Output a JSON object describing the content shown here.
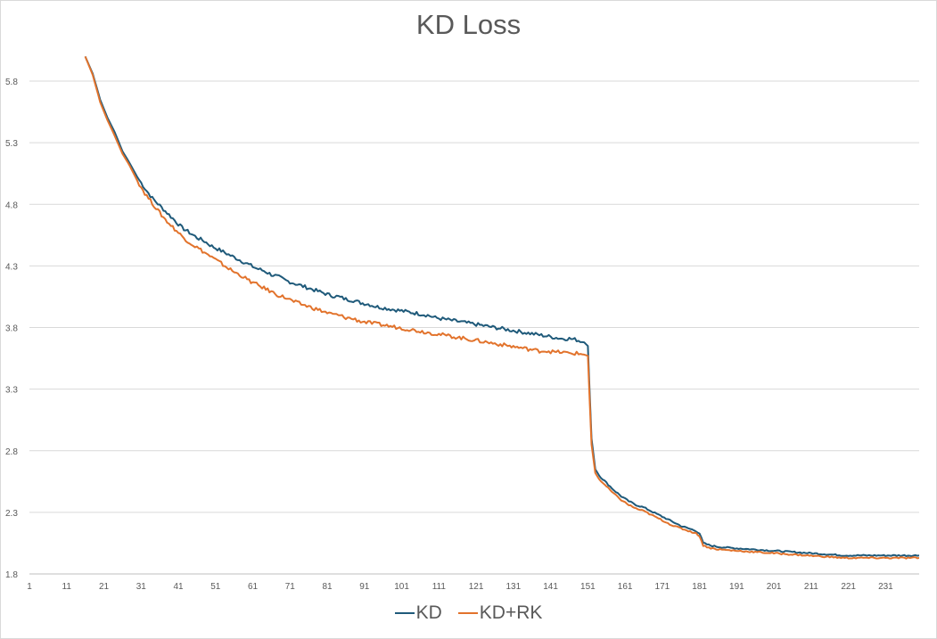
{
  "chart_data": {
    "type": "line",
    "title": "KD Loss",
    "xlabel": "",
    "ylabel": "",
    "x_range": [
      1,
      240
    ],
    "x_ticks": [
      1,
      11,
      21,
      31,
      41,
      51,
      61,
      71,
      81,
      91,
      101,
      111,
      121,
      131,
      141,
      151,
      161,
      171,
      181,
      191,
      201,
      211,
      221,
      231
    ],
    "ylim": [
      1.8,
      6.0
    ],
    "y_ticks": [
      "1.8",
      "2.3",
      "2.8",
      "3.3",
      "3.8",
      "4.3",
      "4.8",
      "5.3",
      "5.8"
    ],
    "grid": "horizontal",
    "legend_position": "bottom",
    "series": [
      {
        "name": "KD",
        "color": "#1f5a7a",
        "points": [
          [
            16,
            6.0
          ],
          [
            18,
            5.86
          ],
          [
            20,
            5.65
          ],
          [
            22,
            5.5
          ],
          [
            24,
            5.38
          ],
          [
            26,
            5.23
          ],
          [
            28,
            5.13
          ],
          [
            30,
            5.02
          ],
          [
            32,
            4.93
          ],
          [
            34,
            4.85
          ],
          [
            36,
            4.79
          ],
          [
            38,
            4.73
          ],
          [
            40,
            4.67
          ],
          [
            42,
            4.61
          ],
          [
            44,
            4.57
          ],
          [
            46,
            4.53
          ],
          [
            48,
            4.5
          ],
          [
            50,
            4.46
          ],
          [
            52,
            4.43
          ],
          [
            54,
            4.4
          ],
          [
            56,
            4.37
          ],
          [
            58,
            4.34
          ],
          [
            60,
            4.31
          ],
          [
            62,
            4.28
          ],
          [
            64,
            4.26
          ],
          [
            66,
            4.23
          ],
          [
            68,
            4.21
          ],
          [
            70,
            4.18
          ],
          [
            72,
            4.16
          ],
          [
            74,
            4.14
          ],
          [
            76,
            4.12
          ],
          [
            78,
            4.1
          ],
          [
            80,
            4.08
          ],
          [
            82,
            4.06
          ],
          [
            84,
            4.05
          ],
          [
            86,
            4.03
          ],
          [
            88,
            4.02
          ],
          [
            90,
            4.0
          ],
          [
            92,
            3.99
          ],
          [
            94,
            3.97
          ],
          [
            96,
            3.96
          ],
          [
            98,
            3.95
          ],
          [
            100,
            3.94
          ],
          [
            102,
            3.93
          ],
          [
            104,
            3.92
          ],
          [
            106,
            3.91
          ],
          [
            108,
            3.9
          ],
          [
            110,
            3.88
          ],
          [
            112,
            3.87
          ],
          [
            114,
            3.86
          ],
          [
            116,
            3.85
          ],
          [
            118,
            3.84
          ],
          [
            120,
            3.83
          ],
          [
            122,
            3.82
          ],
          [
            124,
            3.81
          ],
          [
            126,
            3.8
          ],
          [
            128,
            3.79
          ],
          [
            130,
            3.78
          ],
          [
            132,
            3.77
          ],
          [
            134,
            3.76
          ],
          [
            136,
            3.75
          ],
          [
            138,
            3.74
          ],
          [
            140,
            3.73
          ],
          [
            142,
            3.72
          ],
          [
            144,
            3.71
          ],
          [
            146,
            3.71
          ],
          [
            148,
            3.7
          ],
          [
            150,
            3.68
          ],
          [
            151,
            3.65
          ],
          [
            152,
            2.9
          ],
          [
            153,
            2.65
          ],
          [
            154,
            2.6
          ],
          [
            156,
            2.54
          ],
          [
            158,
            2.48
          ],
          [
            160,
            2.43
          ],
          [
            162,
            2.39
          ],
          [
            164,
            2.36
          ],
          [
            166,
            2.34
          ],
          [
            168,
            2.31
          ],
          [
            170,
            2.28
          ],
          [
            172,
            2.25
          ],
          [
            174,
            2.22
          ],
          [
            176,
            2.19
          ],
          [
            178,
            2.17
          ],
          [
            180,
            2.15
          ],
          [
            181,
            2.13
          ],
          [
            182,
            2.05
          ],
          [
            184,
            2.03
          ],
          [
            186,
            2.02
          ],
          [
            190,
            2.01
          ],
          [
            195,
            2.0
          ],
          [
            200,
            1.99
          ],
          [
            205,
            1.98
          ],
          [
            210,
            1.97
          ],
          [
            215,
            1.96
          ],
          [
            220,
            1.95
          ],
          [
            225,
            1.95
          ],
          [
            230,
            1.95
          ],
          [
            235,
            1.95
          ],
          [
            240,
            1.95
          ]
        ]
      },
      {
        "name": "KD+RK",
        "color": "#e2732c",
        "points": [
          [
            16,
            6.0
          ],
          [
            18,
            5.85
          ],
          [
            20,
            5.63
          ],
          [
            22,
            5.48
          ],
          [
            24,
            5.35
          ],
          [
            26,
            5.21
          ],
          [
            28,
            5.11
          ],
          [
            30,
            4.99
          ],
          [
            32,
            4.89
          ],
          [
            34,
            4.81
          ],
          [
            36,
            4.73
          ],
          [
            38,
            4.66
          ],
          [
            40,
            4.6
          ],
          [
            42,
            4.54
          ],
          [
            44,
            4.49
          ],
          [
            46,
            4.45
          ],
          [
            48,
            4.41
          ],
          [
            50,
            4.37
          ],
          [
            52,
            4.33
          ],
          [
            54,
            4.29
          ],
          [
            56,
            4.25
          ],
          [
            58,
            4.22
          ],
          [
            60,
            4.18
          ],
          [
            62,
            4.15
          ],
          [
            64,
            4.12
          ],
          [
            66,
            4.09
          ],
          [
            68,
            4.06
          ],
          [
            70,
            4.04
          ],
          [
            72,
            4.01
          ],
          [
            74,
            3.99
          ],
          [
            76,
            3.97
          ],
          [
            78,
            3.95
          ],
          [
            80,
            3.93
          ],
          [
            82,
            3.91
          ],
          [
            84,
            3.9
          ],
          [
            86,
            3.88
          ],
          [
            88,
            3.87
          ],
          [
            90,
            3.85
          ],
          [
            92,
            3.84
          ],
          [
            94,
            3.83
          ],
          [
            96,
            3.82
          ],
          [
            98,
            3.81
          ],
          [
            100,
            3.8
          ],
          [
            102,
            3.79
          ],
          [
            104,
            3.78
          ],
          [
            106,
            3.77
          ],
          [
            108,
            3.76
          ],
          [
            110,
            3.75
          ],
          [
            112,
            3.74
          ],
          [
            114,
            3.73
          ],
          [
            116,
            3.72
          ],
          [
            118,
            3.71
          ],
          [
            120,
            3.7
          ],
          [
            122,
            3.69
          ],
          [
            124,
            3.68
          ],
          [
            126,
            3.67
          ],
          [
            128,
            3.66
          ],
          [
            130,
            3.65
          ],
          [
            132,
            3.64
          ],
          [
            134,
            3.63
          ],
          [
            136,
            3.62
          ],
          [
            138,
            3.61
          ],
          [
            140,
            3.61
          ],
          [
            142,
            3.6
          ],
          [
            144,
            3.6
          ],
          [
            146,
            3.59
          ],
          [
            148,
            3.59
          ],
          [
            150,
            3.58
          ],
          [
            151,
            3.57
          ],
          [
            152,
            2.85
          ],
          [
            153,
            2.62
          ],
          [
            154,
            2.57
          ],
          [
            156,
            2.51
          ],
          [
            158,
            2.45
          ],
          [
            160,
            2.4
          ],
          [
            162,
            2.36
          ],
          [
            164,
            2.33
          ],
          [
            166,
            2.31
          ],
          [
            168,
            2.28
          ],
          [
            170,
            2.25
          ],
          [
            172,
            2.22
          ],
          [
            174,
            2.19
          ],
          [
            176,
            2.17
          ],
          [
            178,
            2.15
          ],
          [
            180,
            2.13
          ],
          [
            181,
            2.11
          ],
          [
            182,
            2.03
          ],
          [
            184,
            2.01
          ],
          [
            186,
            2.0
          ],
          [
            190,
            1.99
          ],
          [
            195,
            1.98
          ],
          [
            200,
            1.97
          ],
          [
            205,
            1.96
          ],
          [
            210,
            1.95
          ],
          [
            215,
            1.94
          ],
          [
            220,
            1.93
          ],
          [
            225,
            1.93
          ],
          [
            230,
            1.93
          ],
          [
            235,
            1.93
          ],
          [
            240,
            1.93
          ]
        ]
      }
    ]
  }
}
